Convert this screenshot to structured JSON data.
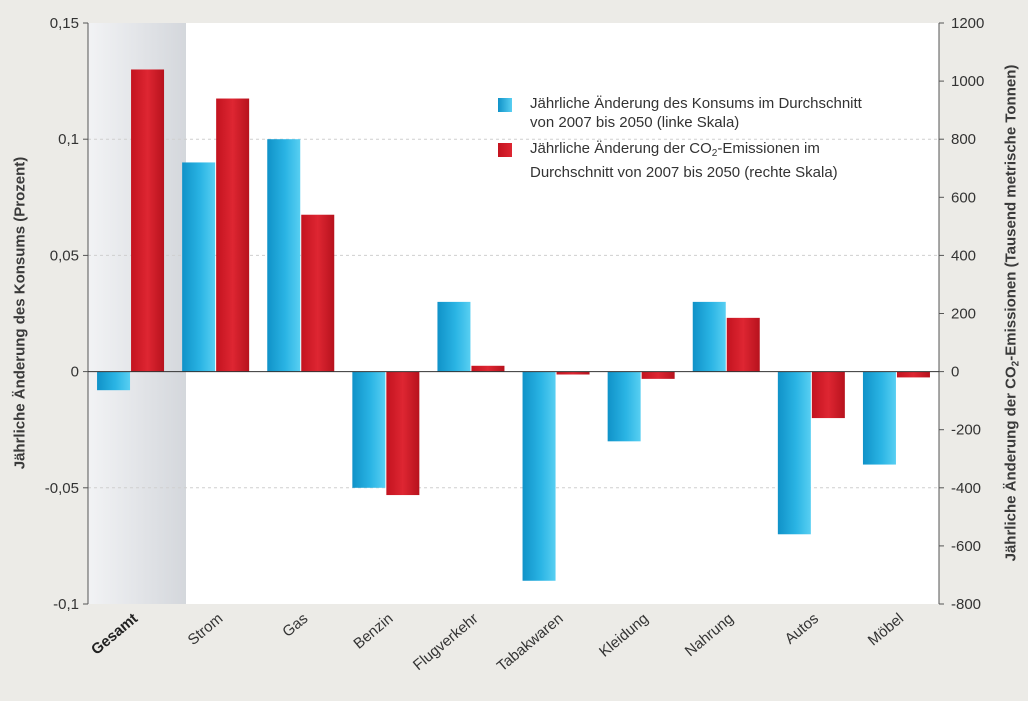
{
  "chart_data": {
    "type": "bar",
    "categories": [
      "Gesamt",
      "Strom",
      "Gas",
      "Benzin",
      "Flugverkehr",
      "Tabakwaren",
      "Kleidung",
      "Nahrung",
      "Autos",
      "Möbel"
    ],
    "series": [
      {
        "name": "Jährliche Änderung des Konsums im Durchschnitt von 2007 bis 2050 (linke Skala)",
        "axis": "left",
        "values": [
          -0.008,
          0.09,
          0.1,
          -0.05,
          0.03,
          -0.09,
          -0.03,
          0.03,
          -0.07,
          -0.04
        ]
      },
      {
        "name": "Jährliche Änderung der CO2-Emissionen im Durchschnitt von 2007 bis 2050 (rechte Skala)",
        "axis": "right",
        "values": [
          1040,
          940,
          540,
          -425,
          20,
          -10,
          -25,
          185,
          -160,
          -20
        ]
      }
    ],
    "ylabel": "Jährliche Änderung des Konsums (Prozent)",
    "y2label_part1": "Jährliche Änderung der CO",
    "y2label_sub": "2",
    "y2label_part2": "-Emissionen (Tausend metrische Tonnen)",
    "ylim": [
      -0.1,
      0.15
    ],
    "y2lim": [
      -800,
      1200
    ],
    "yticks": [
      "0,15",
      "0,1",
      "0,05",
      "0",
      "-0,05",
      "-0,1"
    ],
    "yticks_values": [
      0.15,
      0.1,
      0.05,
      0,
      -0.05,
      -0.1
    ],
    "y2ticks": [
      "1200",
      "1000",
      "800",
      "600",
      "400",
      "200",
      "0",
      "-200",
      "-400",
      "-600",
      "-800"
    ],
    "y2ticks_values": [
      1200,
      1000,
      800,
      600,
      400,
      200,
      0,
      -200,
      -400,
      -600,
      -800
    ],
    "grid": true,
    "highlighted_category": "Gesamt",
    "legend_position": "top-right",
    "legend": {
      "item1_line1": "Jährliche Änderung des Konsums im Durchschnitt",
      "item1_line2": "von 2007 bis 2050 (linke Skala)",
      "item2_line1_a": "Jährliche Änderung der CO",
      "item2_line1_sub": "2",
      "item2_line1_b": "-Emissionen im",
      "item2_line2": "Durchschnitt von 2007 bis 2050 (rechte Skala)"
    },
    "colors": {
      "consumption": "#1aa6d8",
      "consumption_light": "#5fd3f3",
      "emissions": "#d9222e",
      "emissions_dark": "#b0131d",
      "background": "#ecebe7"
    }
  }
}
